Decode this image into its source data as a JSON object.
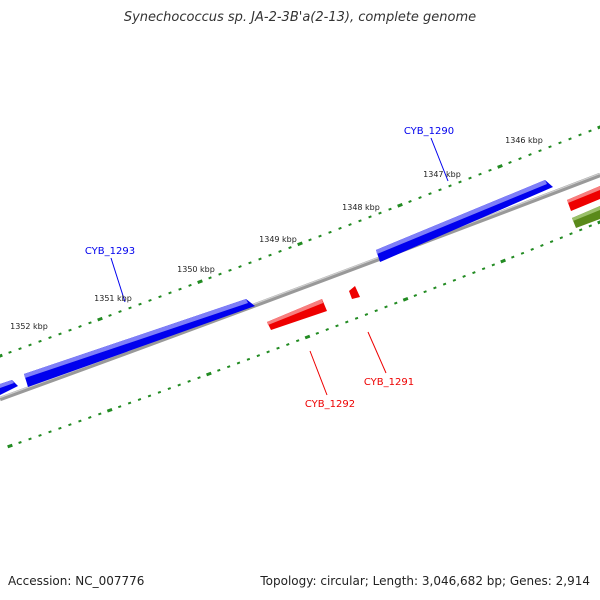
{
  "title": "Synechococcus sp. JA-2-3B'a(2-13), complete genome",
  "footer": {
    "accession": "Accession: NC_007776",
    "summary": "Topology: circular; Length: 3,046,682 bp; Genes: 2,914"
  },
  "colors": {
    "plus_strand": "#0000ee",
    "minus_strand": "#ee0000",
    "other_feature": "#5a8a1a",
    "ticks": "#228b22",
    "backbone": "#888888"
  },
  "kbp_labels": [
    "1346 kbp",
    "1347 kbp",
    "1348 kbp",
    "1349 kbp",
    "1350 kbp",
    "1351 kbp",
    "1352 kbp"
  ],
  "genes": [
    {
      "id": "CYB_1290",
      "strand": "+"
    },
    {
      "id": "CYB_1291",
      "strand": "-"
    },
    {
      "id": "CYB_1292",
      "strand": "-"
    },
    {
      "id": "CYB_1293",
      "strand": "+"
    }
  ]
}
